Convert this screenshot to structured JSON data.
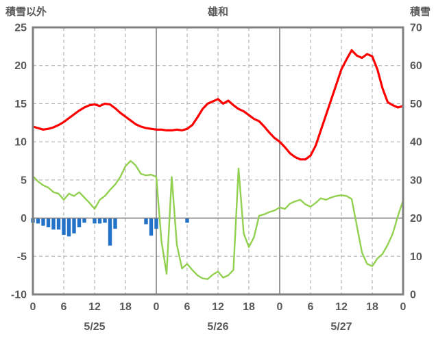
{
  "header": {
    "left_label": "積雪以外",
    "title": "雄和",
    "right_label": "積雪"
  },
  "chart_data": {
    "type": "line",
    "title": "雄和",
    "left_axis": {
      "label": "積雪以外",
      "min": -10,
      "max": 25,
      "ticks": [
        25,
        20,
        15,
        10,
        5,
        0,
        -5,
        -10
      ]
    },
    "right_axis": {
      "label": "積雪",
      "min": 0,
      "max": 70,
      "ticks": [
        70,
        60,
        50,
        40,
        30,
        20,
        10,
        0
      ]
    },
    "x_axis": {
      "min_hour": 0,
      "max_hour": 72,
      "tick_hours": [
        0,
        6,
        12,
        18,
        24,
        30,
        36,
        42,
        48,
        54,
        60,
        66,
        72
      ],
      "tick_labels": [
        "0",
        "6",
        "12",
        "18",
        "0",
        "6",
        "12",
        "18",
        "0",
        "6",
        "12",
        "18",
        "0"
      ],
      "day_labels": [
        {
          "label": "5/25",
          "hour": 12
        },
        {
          "label": "5/26",
          "hour": 36
        },
        {
          "label": "5/27",
          "hour": 60
        }
      ]
    },
    "grid": {
      "vertical_dashed_every_hours": 6,
      "solid_day_boundaries": [
        24,
        48
      ],
      "zero_line_solid": true
    },
    "colors": {
      "grid": "#a6a6a6",
      "axis": "#808080",
      "border": "#7f7f7f",
      "text": "#595959",
      "red": "#ff0000",
      "green": "#92d050",
      "blue": "#2472c8"
    },
    "series": [
      {
        "name": "red",
        "color": "#ff0000",
        "width": 3.2,
        "axis": "left",
        "values": [
          12.0,
          11.8,
          11.6,
          11.7,
          11.9,
          12.2,
          12.6,
          13.1,
          13.6,
          14.1,
          14.5,
          14.8,
          14.9,
          14.7,
          15.0,
          14.9,
          14.4,
          13.8,
          13.3,
          12.8,
          12.3,
          12.0,
          11.8,
          11.7,
          11.6,
          11.6,
          11.5,
          11.5,
          11.6,
          11.5,
          11.7,
          12.2,
          13.2,
          14.3,
          15.0,
          15.3,
          15.6,
          15.0,
          15.4,
          14.8,
          14.3,
          14.0,
          13.5,
          13.0,
          12.7,
          12.0,
          11.2,
          10.5,
          10.0,
          9.3,
          8.5,
          8.0,
          7.7,
          7.7,
          8.2,
          9.5,
          11.5,
          13.5,
          15.5,
          17.5,
          19.5,
          20.8,
          22.0,
          21.3,
          21.0,
          21.5,
          21.2,
          19.5,
          17.0,
          15.2,
          14.8,
          14.5,
          14.7
        ]
      },
      {
        "name": "green",
        "color": "#92d050",
        "width": 2.4,
        "axis": "left",
        "values": [
          5.5,
          4.8,
          4.3,
          4.0,
          3.4,
          3.2,
          2.4,
          3.2,
          2.9,
          3.4,
          2.7,
          2.0,
          1.2,
          2.4,
          2.9,
          3.7,
          4.4,
          5.4,
          6.8,
          7.5,
          6.9,
          5.8,
          5.6,
          5.7,
          5.4,
          -3.0,
          -7.3,
          5.4,
          -3.5,
          -6.6,
          -6.0,
          -6.8,
          -7.5,
          -7.9,
          -8.0,
          -7.4,
          -7.0,
          -7.8,
          -7.5,
          -6.8,
          6.5,
          -2.0,
          -3.8,
          -2.5,
          0.3,
          0.5,
          0.8,
          1.0,
          1.4,
          1.2,
          1.9,
          2.2,
          2.4,
          1.8,
          1.5,
          2.0,
          2.6,
          2.4,
          2.7,
          2.9,
          3.0,
          2.9,
          2.5,
          -1.0,
          -4.5,
          -6.0,
          -6.3,
          -5.3,
          -4.7,
          -3.5,
          -2.0,
          0.3,
          2.3
        ]
      }
    ],
    "bars": {
      "name": "blue",
      "color": "#2472c8",
      "axis": "left",
      "values": [
        -0.6,
        -0.7,
        -1.0,
        -1.2,
        -1.5,
        -1.5,
        -2.2,
        -2.4,
        -2.0,
        -1.2,
        -0.6,
        0,
        -0.7,
        -0.7,
        -0.6,
        -3.6,
        -1.4,
        0,
        0,
        0,
        0,
        0,
        -0.8,
        -2.3,
        -1.4,
        0,
        0,
        0,
        0,
        0,
        -0.6,
        0,
        0,
        0,
        0,
        0,
        0,
        0,
        0,
        0,
        0,
        0,
        0,
        0,
        0,
        0,
        0,
        0,
        0,
        0,
        0,
        0,
        0,
        0,
        0,
        0,
        0,
        0,
        0,
        0,
        0,
        0,
        0,
        0,
        0,
        0,
        0,
        0,
        0,
        0,
        0,
        0,
        0
      ]
    }
  }
}
